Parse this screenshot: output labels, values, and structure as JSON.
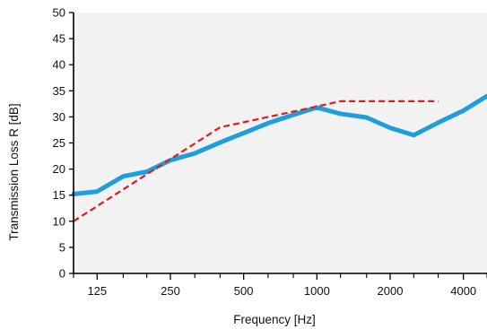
{
  "chart_data": {
    "type": "line",
    "xlabel": "Frequency [Hz]",
    "ylabel": "Transmission Loss R [dB]",
    "xscale": "log",
    "xlim": [
      100,
      5000
    ],
    "ylim": [
      0,
      50
    ],
    "yticks": [
      0,
      5,
      10,
      15,
      20,
      25,
      30,
      35,
      40,
      45,
      50
    ],
    "xticks": [
      {
        "value": 125,
        "label": "125"
      },
      {
        "value": 250,
        "label": "250"
      },
      {
        "value": 500,
        "label": "500"
      },
      {
        "value": 1000,
        "label": "1000"
      },
      {
        "value": 2000,
        "label": "2000"
      },
      {
        "value": 4000,
        "label": "4000"
      }
    ],
    "xminor": [
      100,
      160,
      200,
      315,
      400,
      630,
      800,
      1250,
      1600,
      2500,
      3150,
      5000
    ],
    "grid": false,
    "series": [
      {
        "style": "solid",
        "color": "#1e9fdc",
        "x": [
          100,
          125,
          160,
          200,
          250,
          315,
          400,
          500,
          630,
          800,
          1000,
          1250,
          1600,
          2000,
          2500,
          3150,
          4000,
          5000
        ],
        "y": [
          15.2,
          15.7,
          18.6,
          19.5,
          21.7,
          23.0,
          25.1,
          26.9,
          28.8,
          30.4,
          31.8,
          30.6,
          29.9,
          27.9,
          26.5,
          28.9,
          31.2,
          34.0
        ]
      },
      {
        "style": "dashed",
        "color": "#e8181c",
        "x": [
          100,
          400,
          1000,
          1250,
          3150
        ],
        "y": [
          10.0,
          28.0,
          32.0,
          33.0,
          33.0
        ]
      }
    ]
  }
}
